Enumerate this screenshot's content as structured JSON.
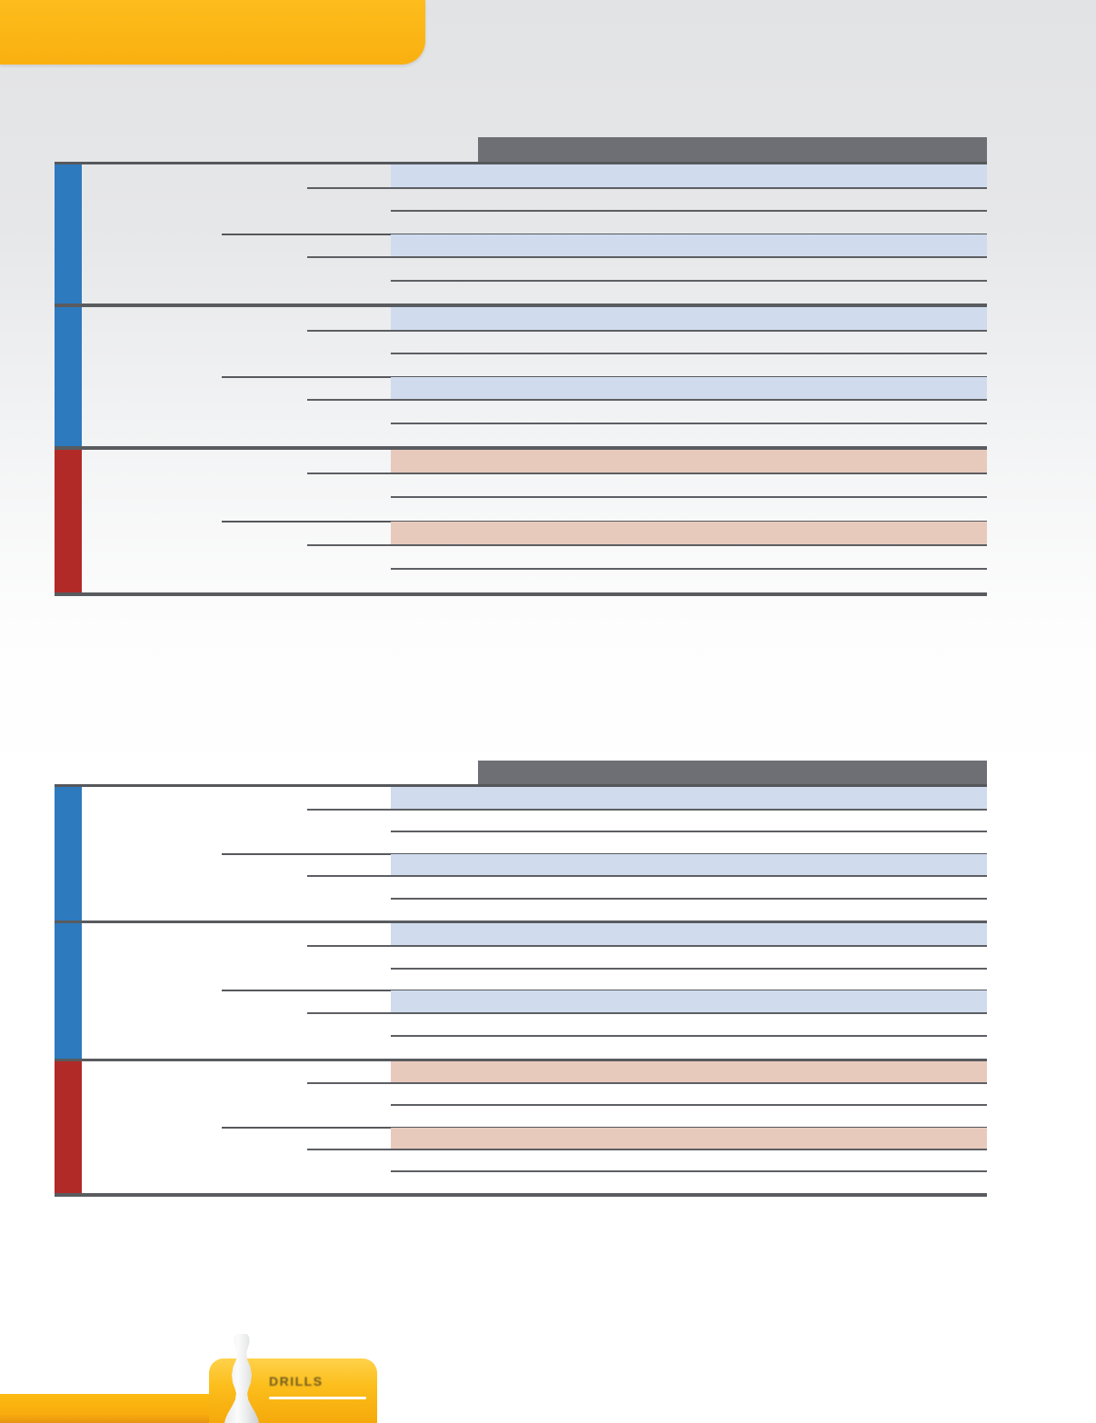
{
  "page": {
    "background_top": "#e2e3e5",
    "background_bottom": "#ffffff"
  },
  "top_banner": {
    "color_top": "#fdbd1c",
    "color_bottom": "#f9b010"
  },
  "tables": [
    {
      "id": "table1",
      "name": "spec-table-1",
      "header_bar_color": "#6d6f74",
      "groups_per_section": 2,
      "rows_per_group": 3,
      "sections": [
        {
          "type": "blue",
          "accent": "#2d7abf",
          "row_highlight": "#d0dcee"
        },
        {
          "type": "blue",
          "accent": "#2d7abf",
          "row_highlight": "#d0dcee"
        },
        {
          "type": "red",
          "accent": "#b22a28",
          "row_highlight": "#e8cabd"
        }
      ]
    },
    {
      "id": "table2",
      "name": "spec-table-2",
      "header_bar_color": "#6d6f74",
      "groups_per_section": 2,
      "rows_per_group": 3,
      "sections": [
        {
          "type": "blue",
          "accent": "#2d7abf",
          "row_highlight": "#d0dcee"
        },
        {
          "type": "blue",
          "accent": "#2d7abf",
          "row_highlight": "#d0dcee"
        },
        {
          "type": "red",
          "accent": "#b22a28",
          "row_highlight": "#e8cabd"
        }
      ]
    }
  ],
  "lines": {
    "row_line": "#5c5e62",
    "section_divider": "#595b5f",
    "table_border": "#55575b"
  },
  "footer": {
    "tab_label": "DRILLS",
    "bar_color": "#fcbb12",
    "tab_gradient_top": "#ffd24b",
    "tab_gradient_bottom": "#f5a90b",
    "label_color": "#6f5a1e",
    "underline_color": "#ffffff"
  }
}
